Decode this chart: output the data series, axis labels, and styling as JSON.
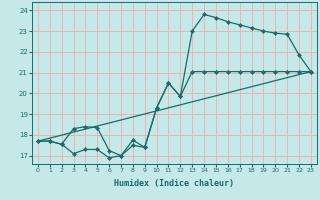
{
  "xlabel": "Humidex (Indice chaleur)",
  "bg_color": "#c5e8e8",
  "grid_color": "#e8b4b4",
  "line_color": "#1a6b6b",
  "xlim": [
    -0.5,
    23.5
  ],
  "ylim": [
    16.6,
    24.4
  ],
  "xticks": [
    0,
    1,
    2,
    3,
    4,
    5,
    6,
    7,
    8,
    9,
    10,
    11,
    12,
    13,
    14,
    15,
    16,
    17,
    18,
    19,
    20,
    21,
    22,
    23
  ],
  "yticks": [
    17,
    18,
    19,
    20,
    21,
    22,
    23,
    24
  ],
  "curve1_x": [
    0,
    1,
    2,
    3,
    4,
    5,
    6,
    7,
    8,
    9,
    10,
    11,
    12,
    13,
    14,
    15,
    16,
    17,
    18,
    19,
    20,
    21,
    22,
    23
  ],
  "curve1_y": [
    17.7,
    17.7,
    17.55,
    17.1,
    17.3,
    17.3,
    16.9,
    17.0,
    17.5,
    17.4,
    19.3,
    20.5,
    19.85,
    23.0,
    23.8,
    23.65,
    23.45,
    23.3,
    23.15,
    23.0,
    22.9,
    22.85,
    21.85,
    21.05
  ],
  "curve2_x": [
    0,
    1,
    2,
    3,
    4,
    5,
    6,
    7,
    8,
    9,
    10,
    11,
    12,
    13,
    14,
    15,
    16,
    17,
    18,
    19,
    20,
    21,
    22,
    23
  ],
  "curve2_y": [
    17.7,
    17.7,
    17.55,
    18.3,
    18.4,
    18.35,
    17.25,
    17.0,
    17.75,
    17.4,
    19.3,
    20.5,
    19.85,
    21.05,
    21.05,
    21.05,
    21.05,
    21.05,
    21.05,
    21.05,
    21.05,
    21.05,
    21.05,
    21.05
  ],
  "line_x": [
    0,
    23
  ],
  "line_y": [
    17.7,
    21.05
  ],
  "marker_size": 2.5,
  "line_width": 0.9
}
